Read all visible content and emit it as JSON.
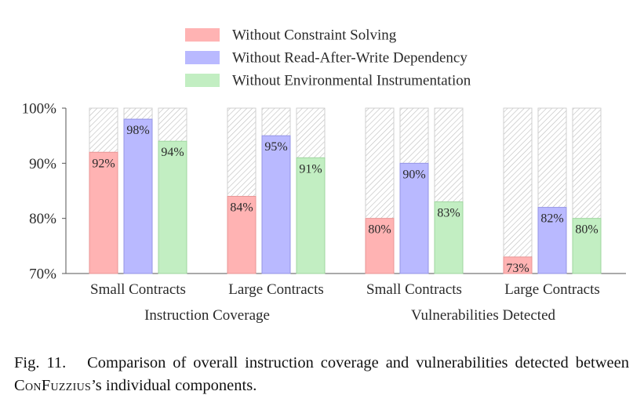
{
  "chart_data": {
    "type": "bar",
    "series": [
      {
        "name": "Without Constraint Solving",
        "color": "#ffb3b3",
        "stroke": "#e89595",
        "values": [
          92,
          84,
          80,
          73
        ]
      },
      {
        "name": "Without Read-After-Write Dependency",
        "color": "#b9b9ff",
        "stroke": "#9595e6",
        "values": [
          98,
          95,
          90,
          82
        ]
      },
      {
        "name": "Without Environmental Instrumentation",
        "color": "#c2eec2",
        "stroke": "#9fd69f",
        "values": [
          94,
          91,
          83,
          80
        ]
      }
    ],
    "categories": [
      "Small Contracts",
      "Large Contracts",
      "Small Contracts",
      "Large Contracts"
    ],
    "groups": [
      {
        "label": "Instruction Coverage",
        "categories": [
          0,
          1
        ]
      },
      {
        "label": "Vulnerabilities Detected",
        "categories": [
          2,
          3
        ]
      }
    ],
    "value_labels": [
      [
        "92%",
        "84%",
        "80%",
        "73%"
      ],
      [
        "98%",
        "95%",
        "90%",
        "82%"
      ],
      [
        "94%",
        "91%",
        "83%",
        "80%"
      ]
    ],
    "ylim": [
      70,
      100
    ],
    "yticks": [
      70,
      80,
      90,
      100
    ],
    "ytick_labels": [
      "70%",
      "80%",
      "90%",
      "100%"
    ],
    "background_bar": {
      "style": "hatched",
      "up_to": 100
    },
    "legend_position": "top-center",
    "grid": false
  },
  "caption": {
    "fig": "Fig. 11.",
    "text_before": "Comparison of overall instruction coverage and vulnerabilities detected between ",
    "tool": "ConFuzzius",
    "text_after": "’s individual components."
  }
}
